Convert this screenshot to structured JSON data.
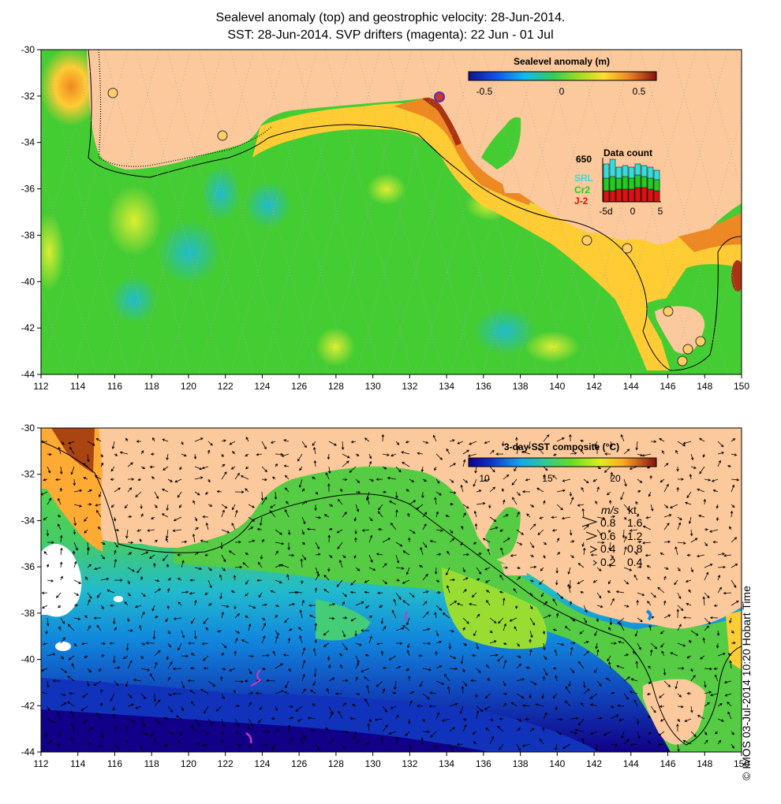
{
  "titles": {
    "line1": "Sealevel anomaly (top) and geostrophic velocity: 28-Jun-2014.",
    "line2": "SST: 28-Jun-2014. SVP drifters (magenta): 22 Jun - 01 Jul"
  },
  "axes": {
    "lat_ticks": [
      "-30",
      "-32",
      "-34",
      "-36",
      "-38",
      "-40",
      "-42",
      "-44"
    ],
    "lon_ticks": [
      "112",
      "114",
      "116",
      "118",
      "120",
      "122",
      "124",
      "126",
      "128",
      "130",
      "132",
      "134",
      "136",
      "138",
      "140",
      "142",
      "144",
      "146",
      "148",
      "150"
    ],
    "lon_range": [
      112,
      150
    ],
    "lat_range": [
      -44,
      -30
    ]
  },
  "top_panel": {
    "colorbar_title": "Sealevel anomaly (m)",
    "colorbar_ticks": [
      "-0.5",
      "0",
      "0.5"
    ],
    "data_count": {
      "title": "Data count",
      "max_label": "650",
      "satellites": [
        {
          "name": "SRL",
          "color": "#33dddd"
        },
        {
          "name": "Cr2",
          "color": "#22cc22"
        },
        {
          "name": "J-2",
          "color": "#dd1111"
        }
      ],
      "x_ticks": [
        "-5d",
        "0",
        "5"
      ]
    }
  },
  "bottom_panel": {
    "colorbar_title": "3-day SST composite (°C)",
    "colorbar_ticks": [
      "10",
      "15",
      "20"
    ],
    "velocity_key": {
      "header_ms": "m/s",
      "header_kt": "kt",
      "rows": [
        {
          "ms": "0.8",
          "kt": "1.6"
        },
        {
          "ms": "0.6",
          "kt": "1.2"
        },
        {
          "ms": "0.4",
          "kt": "0.8"
        },
        {
          "ms": "0.2",
          "kt": "0.4"
        }
      ]
    }
  },
  "credit": "© IMOS 03-Jul-2014 10:20 Hobart Time",
  "colors": {
    "land": "#fcc99c",
    "ocean_green": "#44cc33",
    "drifter": "#cc33cc"
  }
}
